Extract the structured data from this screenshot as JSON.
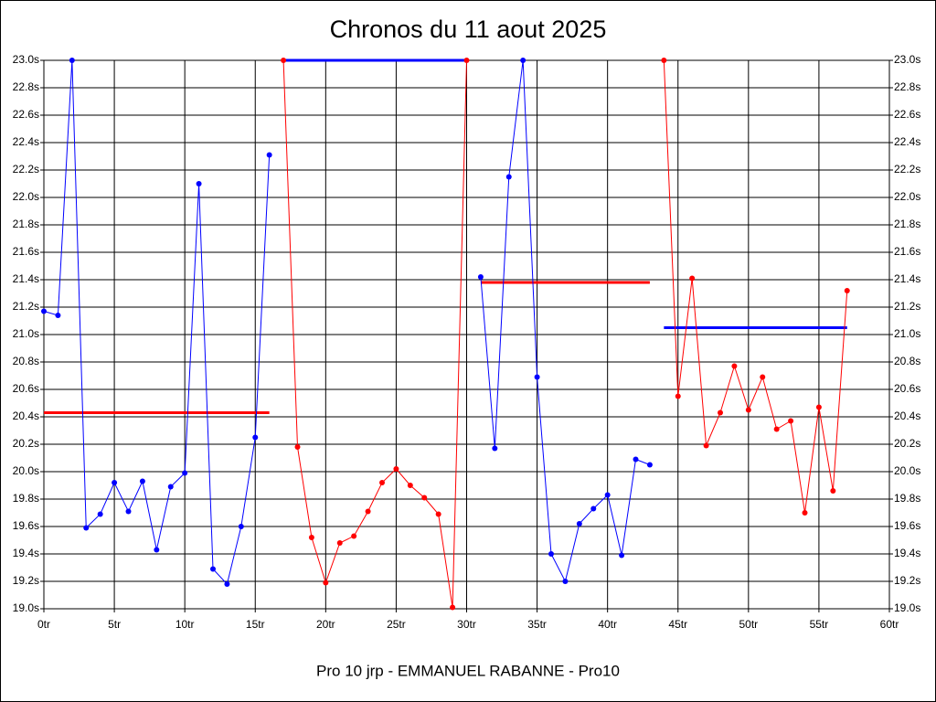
{
  "chart_data": {
    "type": "line",
    "title": "Chronos du 11 aout 2025",
    "xlabel": "Pro 10 jrp - EMMANUEL RABANNE - Pro10",
    "xlim": [
      0,
      60
    ],
    "xticks": [
      {
        "value": 0,
        "label": "0tr"
      },
      {
        "value": 5,
        "label": "5tr"
      },
      {
        "value": 10,
        "label": "10tr"
      },
      {
        "value": 15,
        "label": "15tr"
      },
      {
        "value": 20,
        "label": "20tr"
      },
      {
        "value": 25,
        "label": "25tr"
      },
      {
        "value": 30,
        "label": "30tr"
      },
      {
        "value": 35,
        "label": "35tr"
      },
      {
        "value": 40,
        "label": "40tr"
      },
      {
        "value": 45,
        "label": "45tr"
      },
      {
        "value": 50,
        "label": "50tr"
      },
      {
        "value": 55,
        "label": "55tr"
      },
      {
        "value": 60,
        "label": "60tr"
      }
    ],
    "ylim": [
      19.0,
      23.0
    ],
    "yticks": [
      {
        "value": 19.0,
        "label": "19.0s"
      },
      {
        "value": 19.2,
        "label": "19.2s"
      },
      {
        "value": 19.4,
        "label": "19.4s"
      },
      {
        "value": 19.6,
        "label": "19.6s"
      },
      {
        "value": 19.8,
        "label": "19.8s"
      },
      {
        "value": 20.0,
        "label": "20.0s"
      },
      {
        "value": 20.2,
        "label": "20.2s"
      },
      {
        "value": 20.4,
        "label": "20.4s"
      },
      {
        "value": 20.6,
        "label": "20.6s"
      },
      {
        "value": 20.8,
        "label": "20.8s"
      },
      {
        "value": 21.0,
        "label": "21.0s"
      },
      {
        "value": 21.2,
        "label": "21.2s"
      },
      {
        "value": 21.4,
        "label": "21.4s"
      },
      {
        "value": 21.6,
        "label": "21.6s"
      },
      {
        "value": 21.8,
        "label": "21.8s"
      },
      {
        "value": 22.0,
        "label": "22.0s"
      },
      {
        "value": 22.2,
        "label": "22.2s"
      },
      {
        "value": 22.4,
        "label": "22.4s"
      },
      {
        "value": 22.6,
        "label": "22.6s"
      },
      {
        "value": 22.8,
        "label": "22.8s"
      },
      {
        "value": 23.0,
        "label": "23.0s"
      }
    ],
    "grid": true,
    "series": [
      {
        "color": "#0000ff",
        "x": [
          0,
          1,
          2,
          3,
          4,
          5,
          6,
          7,
          8,
          9,
          10,
          11,
          12,
          13,
          14,
          15,
          16
        ],
        "values": [
          21.17,
          21.14,
          23.0,
          19.59,
          19.69,
          19.92,
          19.71,
          19.93,
          19.43,
          19.89,
          19.99,
          22.1,
          19.29,
          19.18,
          19.6,
          20.25,
          22.31
        ]
      },
      {
        "color": "#ff0000",
        "x": [
          17,
          18,
          19,
          20,
          21,
          22,
          23,
          24,
          25,
          26,
          27,
          28,
          29,
          30
        ],
        "values": [
          23.0,
          20.18,
          19.52,
          19.19,
          19.48,
          19.53,
          19.71,
          19.92,
          20.02,
          19.9,
          19.81,
          19.69,
          19.01,
          23.0
        ]
      },
      {
        "color": "#0000ff",
        "x": [
          31,
          32,
          33,
          34,
          35,
          36,
          37,
          38,
          39,
          40,
          41,
          42,
          43
        ],
        "values": [
          21.42,
          20.17,
          22.15,
          23.0,
          20.69,
          19.4,
          19.2,
          19.62,
          19.73,
          19.83,
          19.39,
          20.09,
          20.05
        ]
      },
      {
        "color": "#ff0000",
        "x": [
          44,
          45,
          46,
          47,
          48,
          49,
          50,
          51,
          52,
          53,
          54,
          55,
          56,
          57
        ],
        "values": [
          23.0,
          20.55,
          21.41,
          20.19,
          20.43,
          20.77,
          20.45,
          20.69,
          20.31,
          20.37,
          19.7,
          20.47,
          19.86,
          21.32
        ]
      }
    ],
    "hlines": [
      {
        "color": "#ff0000",
        "xmin": 0,
        "xmax": 16,
        "value": 20.43
      },
      {
        "color": "#0000ff",
        "xmin": 17,
        "xmax": 30,
        "value": 23.0
      },
      {
        "color": "#ff0000",
        "xmin": 31,
        "xmax": 43,
        "value": 21.38
      },
      {
        "color": "#0000ff",
        "xmin": 44,
        "xmax": 57,
        "value": 21.05
      }
    ]
  }
}
